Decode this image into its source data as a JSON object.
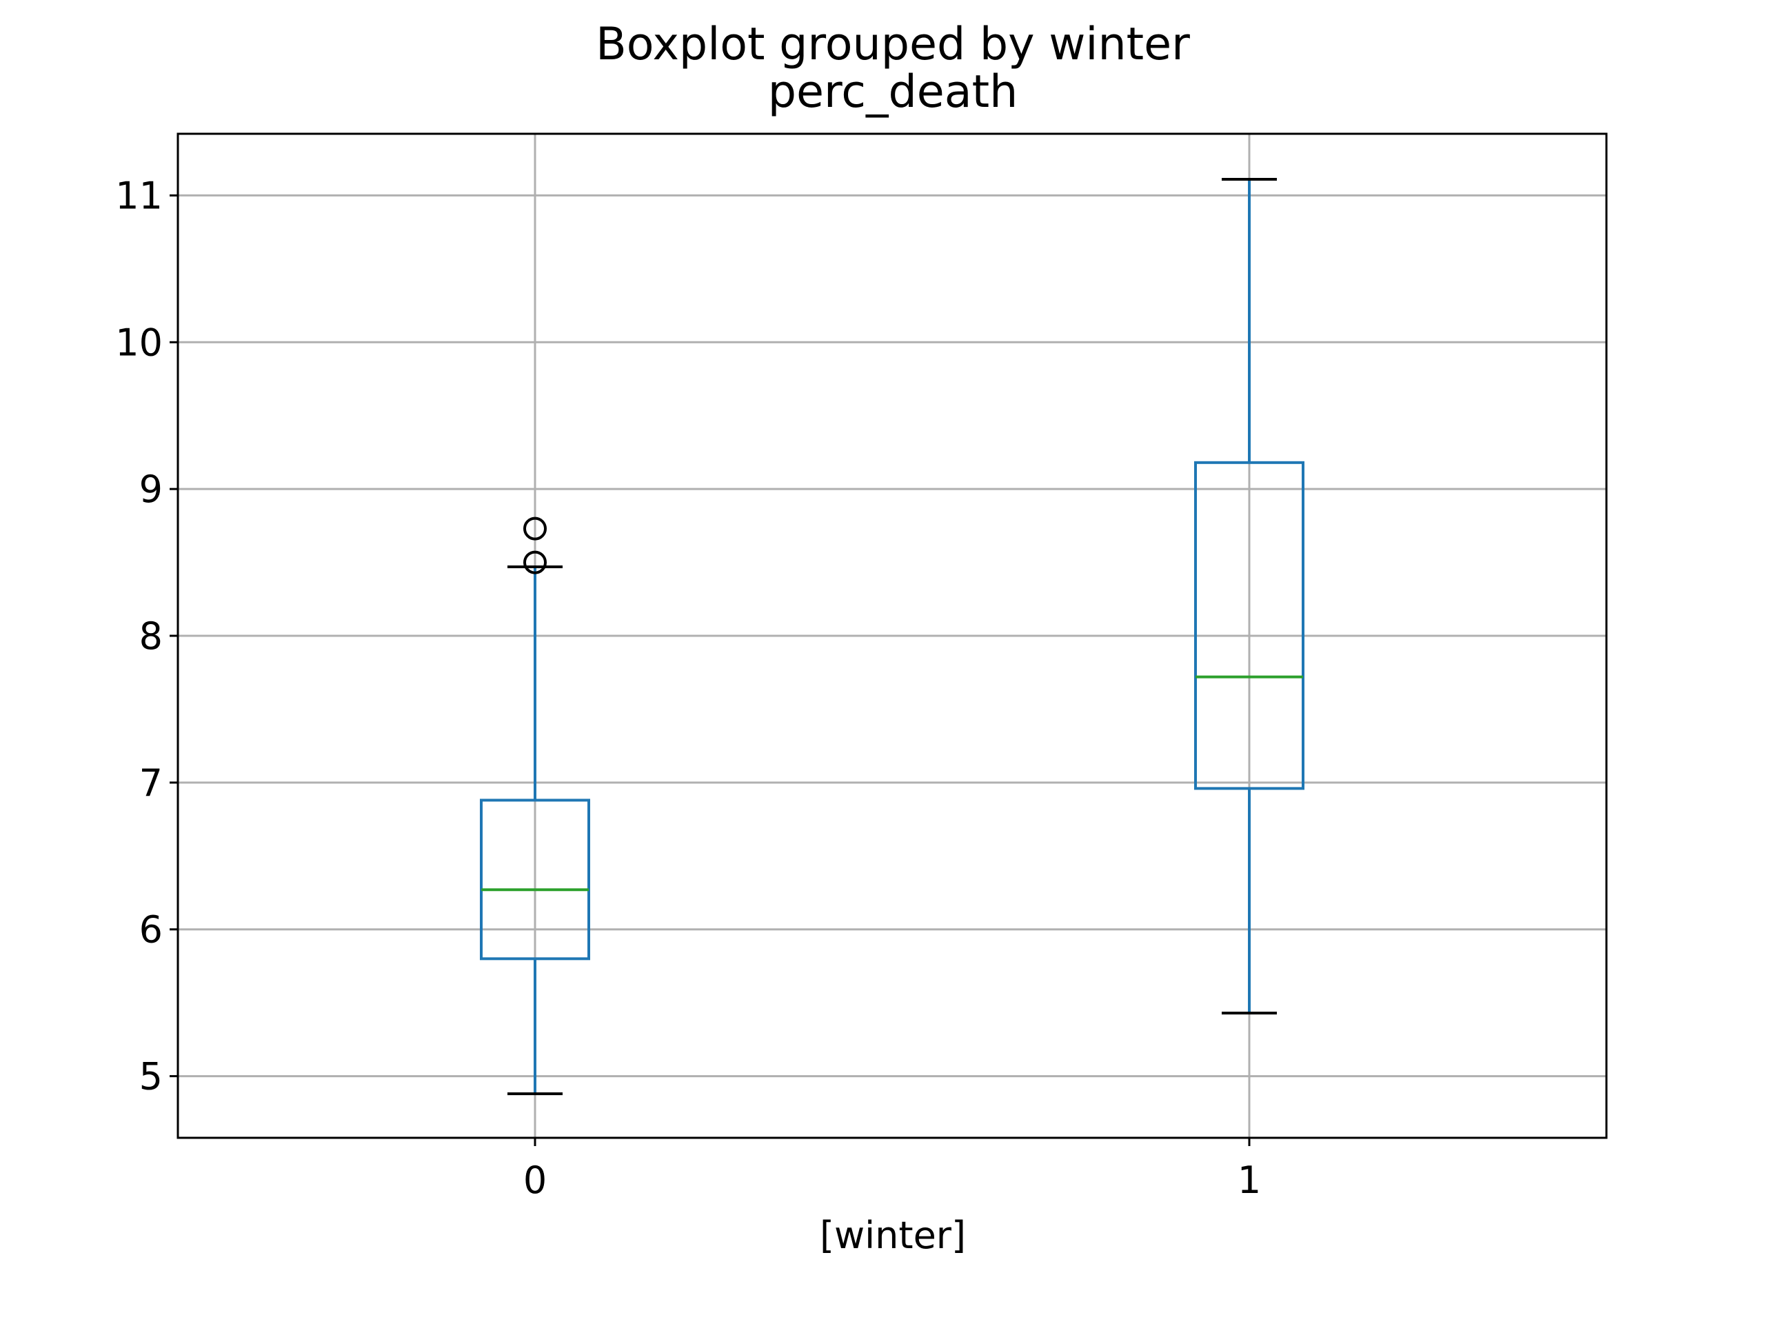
{
  "chart_data": {
    "type": "boxplot",
    "title": "Boxplot grouped by winter",
    "subtitle": "perc_death",
    "xlabel": "[winter]",
    "ylabel": "",
    "ylim": [
      4.58,
      11.42
    ],
    "yticks": [
      5,
      6,
      7,
      8,
      9,
      10,
      11
    ],
    "grid": true,
    "categories": [
      "0",
      "1"
    ],
    "boxes": [
      {
        "category": "0",
        "whisker_low": 4.88,
        "q1": 5.8,
        "median": 6.27,
        "q3": 6.88,
        "whisker_high": 8.47,
        "outliers": [
          8.5,
          8.73
        ]
      },
      {
        "category": "1",
        "whisker_low": 5.43,
        "q1": 6.96,
        "median": 7.72,
        "q3": 9.18,
        "whisker_high": 11.11,
        "outliers": []
      }
    ],
    "colors": {
      "box": "#1f77b4",
      "median": "#2ca02c",
      "cap": "#000000",
      "grid": "#b0b0b0",
      "outlier": "#000000"
    }
  }
}
